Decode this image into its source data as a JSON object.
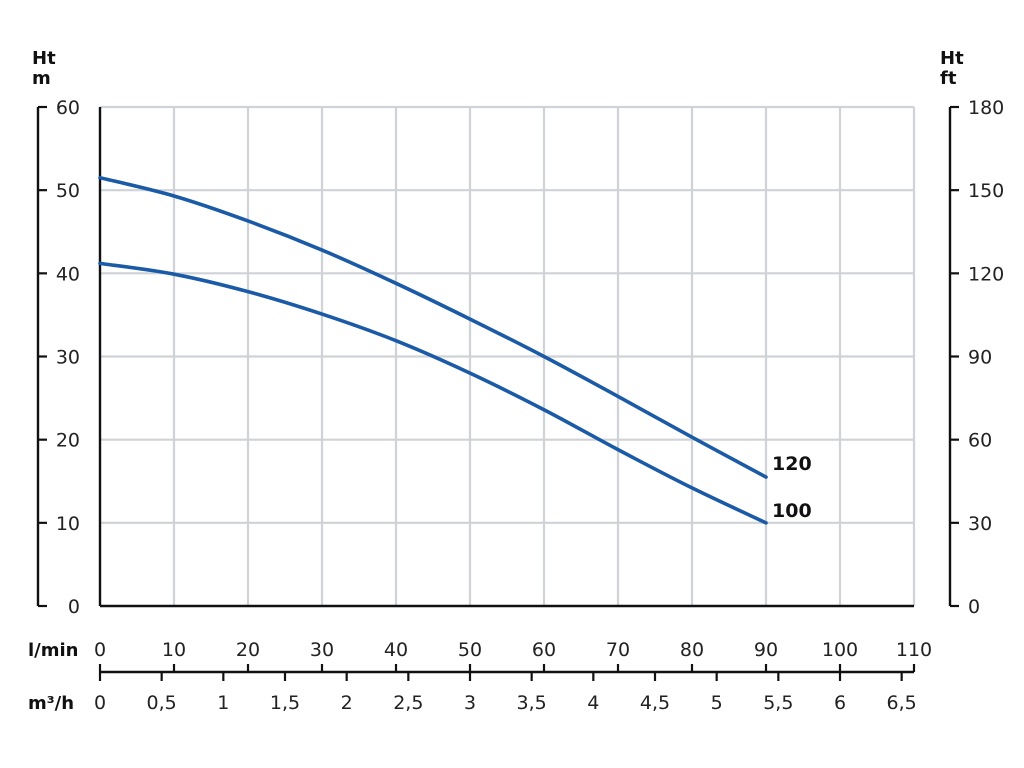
{
  "chart_data": {
    "type": "line",
    "y_left": {
      "label_line1": "Ht",
      "label_line2": "m",
      "range": [
        0,
        60
      ],
      "ticks": [
        "0",
        "10",
        "20",
        "30",
        "40",
        "50",
        "60"
      ]
    },
    "y_right": {
      "label_line1": "Ht",
      "label_line2": "ft",
      "range": [
        0,
        180
      ],
      "ticks": [
        "0",
        "30",
        "60",
        "90",
        "120",
        "150",
        "180"
      ]
    },
    "x_lmin": {
      "label": "l/min",
      "range": [
        0,
        110
      ],
      "ticks": [
        "0",
        "10",
        "20",
        "30",
        "40",
        "50",
        "60",
        "70",
        "80",
        "90",
        "100",
        "110"
      ]
    },
    "x_m3h": {
      "label": "m³/h",
      "ticks": [
        "0",
        "0,5",
        "1",
        "1,5",
        "2",
        "2,5",
        "3",
        "3,5",
        "4",
        "4,5",
        "5",
        "5,5",
        "6",
        "6,5"
      ],
      "tick_values": [
        0,
        0.5,
        1,
        1.5,
        2,
        2.5,
        3,
        3.5,
        4,
        4.5,
        5,
        5.5,
        6,
        6.5
      ]
    },
    "grid": true,
    "line_color": "#1a5aa6",
    "series": [
      {
        "name": "120",
        "x": [
          0,
          10,
          20,
          30,
          40,
          50,
          60,
          70,
          80,
          90
        ],
        "y": [
          51.5,
          49.3,
          46.3,
          42.8,
          38.8,
          34.5,
          30.0,
          25.2,
          20.3,
          15.5
        ]
      },
      {
        "name": "100",
        "x": [
          0,
          10,
          20,
          30,
          40,
          50,
          60,
          70,
          80,
          90
        ],
        "y": [
          41.2,
          39.9,
          37.8,
          35.1,
          31.9,
          28.0,
          23.6,
          18.8,
          14.2,
          10.0
        ]
      }
    ]
  }
}
